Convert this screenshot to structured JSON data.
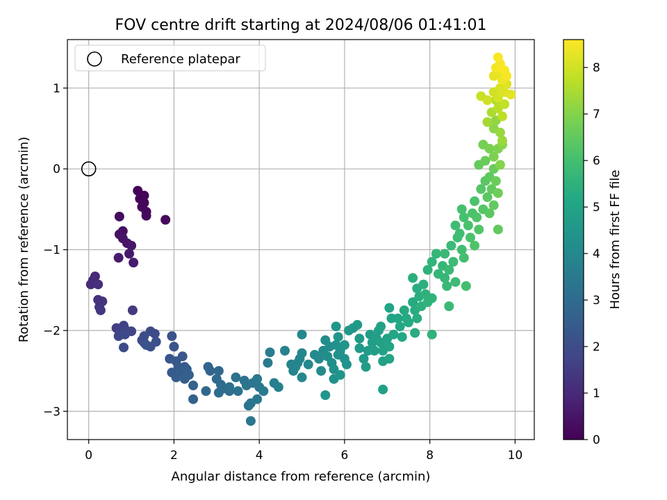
{
  "chart_data": {
    "type": "scatter",
    "title": "FOV centre drift starting at 2024/08/06 01:41:01",
    "xlabel": "Angular distance from reference (arcmin)",
    "ylabel": "Rotation from reference (arcmin)",
    "xlim": [
      -0.5,
      10.45
    ],
    "ylim": [
      -3.35,
      1.6
    ],
    "xticks": [
      0,
      2,
      4,
      6,
      8,
      10
    ],
    "yticks": [
      -3,
      -2,
      -1,
      0,
      1
    ],
    "grid": true,
    "legend": {
      "placement": "top-left",
      "entries": [
        "Reference platepar"
      ]
    },
    "reference_point": {
      "x": 0,
      "y": 0
    },
    "colorbar": {
      "label": "Hours from first FF file",
      "range": [
        0,
        8.6
      ],
      "ticks": [
        0,
        1,
        2,
        3,
        4,
        5,
        6,
        7,
        8
      ],
      "colormap": "viridis"
    },
    "points": [
      [
        1.15,
        -0.27,
        0.05
      ],
      [
        1.3,
        -0.33,
        0.07
      ],
      [
        1.2,
        -0.37,
        0.1
      ],
      [
        1.3,
        -0.42,
        0.12
      ],
      [
        1.25,
        -0.47,
        0.15
      ],
      [
        1.35,
        -0.53,
        0.18
      ],
      [
        1.35,
        -0.58,
        0.2
      ],
      [
        1.8,
        -0.63,
        0.22
      ],
      [
        0.72,
        -0.59,
        0.3
      ],
      [
        0.8,
        -0.77,
        0.35
      ],
      [
        0.72,
        -0.81,
        0.4
      ],
      [
        0.8,
        -0.86,
        0.45
      ],
      [
        0.9,
        -0.92,
        0.5
      ],
      [
        1.0,
        -0.95,
        0.55
      ],
      [
        0.95,
        -1.05,
        0.6
      ],
      [
        0.7,
        -1.1,
        0.63
      ],
      [
        1.05,
        -1.16,
        0.66
      ],
      [
        0.15,
        -1.33,
        1.0
      ],
      [
        0.1,
        -1.38,
        1.05
      ],
      [
        0.05,
        -1.43,
        1.1
      ],
      [
        0.22,
        -1.43,
        1.15
      ],
      [
        0.22,
        -1.62,
        1.2
      ],
      [
        0.32,
        -1.64,
        1.25
      ],
      [
        0.25,
        -1.71,
        1.3
      ],
      [
        0.28,
        -1.75,
        1.35
      ],
      [
        1.03,
        -1.75,
        1.45
      ],
      [
        0.65,
        -1.97,
        1.55
      ],
      [
        0.82,
        -1.94,
        1.6
      ],
      [
        0.73,
        -2.0,
        1.65
      ],
      [
        0.88,
        -2.0,
        1.7
      ],
      [
        1.0,
        -2.01,
        1.75
      ],
      [
        0.7,
        -2.07,
        1.8
      ],
      [
        0.85,
        -2.05,
        1.85
      ],
      [
        0.82,
        -2.21,
        1.9
      ],
      [
        1.45,
        -2.01,
        1.9
      ],
      [
        1.55,
        -2.04,
        1.95
      ],
      [
        1.3,
        -2.07,
        2.0
      ],
      [
        1.25,
        -2.12,
        2.0
      ],
      [
        1.3,
        -2.15,
        2.05
      ],
      [
        1.45,
        -2.2,
        2.1
      ],
      [
        1.58,
        -2.14,
        2.1
      ],
      [
        1.35,
        -2.18,
        2.15
      ],
      [
        1.95,
        -2.07,
        2.2
      ],
      [
        2.0,
        -2.2,
        2.25
      ],
      [
        1.9,
        -2.35,
        2.3
      ],
      [
        2.05,
        -2.38,
        2.35
      ],
      [
        2.2,
        -2.32,
        2.35
      ],
      [
        2.1,
        -2.45,
        2.4
      ],
      [
        2.25,
        -2.45,
        2.45
      ],
      [
        1.95,
        -2.52,
        2.45
      ],
      [
        2.05,
        -2.58,
        2.5
      ],
      [
        2.15,
        -2.55,
        2.55
      ],
      [
        2.25,
        -2.6,
        2.6
      ],
      [
        2.35,
        -2.55,
        2.6
      ],
      [
        2.2,
        -2.5,
        2.5
      ],
      [
        2.3,
        -2.48,
        2.55
      ],
      [
        2.45,
        -2.68,
        2.65
      ],
      [
        2.45,
        -2.85,
        2.7
      ],
      [
        2.8,
        -2.45,
        2.75
      ],
      [
        2.85,
        -2.5,
        2.8
      ],
      [
        2.75,
        -2.75,
        2.85
      ],
      [
        3.05,
        -2.5,
        2.9
      ],
      [
        3.0,
        -2.6,
        2.95
      ],
      [
        3.1,
        -2.67,
        3.0
      ],
      [
        3.15,
        -2.72,
        3.05
      ],
      [
        3.05,
        -2.77,
        3.05
      ],
      [
        3.3,
        -2.75,
        3.1
      ],
      [
        3.45,
        -2.58,
        3.15
      ],
      [
        3.3,
        -2.7,
        3.2
      ],
      [
        3.5,
        -2.75,
        3.25
      ],
      [
        3.65,
        -2.62,
        3.25
      ],
      [
        3.7,
        -2.68,
        3.3
      ],
      [
        3.75,
        -2.93,
        3.3
      ],
      [
        3.85,
        -2.65,
        3.35
      ],
      [
        3.8,
        -2.9,
        3.35
      ],
      [
        3.95,
        -2.6,
        3.4
      ],
      [
        4.0,
        -2.7,
        3.45
      ],
      [
        3.95,
        -2.85,
        3.45
      ],
      [
        4.1,
        -2.75,
        3.5
      ],
      [
        3.8,
        -3.12,
        3.4
      ],
      [
        4.2,
        -2.4,
        3.55
      ],
      [
        4.25,
        -2.27,
        3.6
      ],
      [
        4.35,
        -2.65,
        3.65
      ],
      [
        4.45,
        -2.7,
        3.7
      ],
      [
        4.6,
        -2.25,
        3.75
      ],
      [
        4.75,
        -2.42,
        3.8
      ],
      [
        4.8,
        -2.5,
        3.85
      ],
      [
        4.85,
        -2.45,
        3.85
      ],
      [
        4.9,
        -2.4,
        3.9
      ],
      [
        4.95,
        -2.35,
        3.9
      ],
      [
        5.0,
        -2.28,
        3.95
      ],
      [
        5.0,
        -2.58,
        3.95
      ],
      [
        5.0,
        -2.05,
        3.95
      ],
      [
        5.15,
        -2.42,
        4.0
      ],
      [
        5.3,
        -2.3,
        4.05
      ],
      [
        5.4,
        -2.35,
        4.05
      ],
      [
        5.45,
        -2.5,
        4.1
      ],
      [
        5.5,
        -2.25,
        4.1
      ],
      [
        5.55,
        -2.12,
        4.15
      ],
      [
        5.65,
        -2.2,
        4.15
      ],
      [
        5.6,
        -2.32,
        4.2
      ],
      [
        5.7,
        -2.4,
        4.2
      ],
      [
        5.75,
        -2.48,
        4.25
      ],
      [
        5.8,
        -2.18,
        4.25
      ],
      [
        5.75,
        -2.6,
        4.3
      ],
      [
        5.85,
        -2.3,
        4.3
      ],
      [
        5.9,
        -2.25,
        4.35
      ],
      [
        6.0,
        -2.35,
        4.35
      ],
      [
        6.0,
        -2.18,
        4.4
      ],
      [
        6.05,
        -2.42,
        4.4
      ],
      [
        5.9,
        -2.55,
        4.45
      ],
      [
        5.55,
        -2.8,
        4.45
      ],
      [
        5.85,
        -2.08,
        4.5
      ],
      [
        5.8,
        -1.95,
        4.5
      ],
      [
        6.1,
        -2.0,
        4.55
      ],
      [
        6.2,
        -1.97,
        4.55
      ],
      [
        6.3,
        -1.93,
        4.6
      ],
      [
        6.35,
        -2.1,
        4.6
      ],
      [
        6.35,
        -2.22,
        4.65
      ],
      [
        6.45,
        -2.35,
        4.65
      ],
      [
        6.5,
        -2.45,
        4.7
      ],
      [
        6.55,
        -2.25,
        4.7
      ],
      [
        6.6,
        -2.05,
        4.75
      ],
      [
        6.65,
        -2.15,
        4.75
      ],
      [
        6.7,
        -2.25,
        4.8
      ],
      [
        6.75,
        -2.1,
        4.8
      ],
      [
        6.8,
        -2.0,
        4.85
      ],
      [
        6.85,
        -2.15,
        4.85
      ],
      [
        6.9,
        -2.25,
        4.9
      ],
      [
        6.9,
        -2.38,
        4.9
      ],
      [
        6.85,
        -1.95,
        4.95
      ],
      [
        7.0,
        -2.1,
        4.95
      ],
      [
        7.05,
        -2.2,
        5.0
      ],
      [
        7.05,
        -2.35,
        5.0
      ],
      [
        6.9,
        -2.73,
        4.85
      ],
      [
        7.05,
        -1.72,
        5.05
      ],
      [
        7.1,
        -1.85,
        5.05
      ],
      [
        7.15,
        -2.05,
        5.1
      ],
      [
        7.25,
        -1.85,
        5.1
      ],
      [
        7.3,
        -1.95,
        5.15
      ],
      [
        7.35,
        -2.08,
        5.15
      ],
      [
        7.4,
        -1.75,
        5.2
      ],
      [
        7.45,
        -1.85,
        5.2
      ],
      [
        7.5,
        -1.9,
        5.25
      ],
      [
        7.6,
        -1.65,
        5.25
      ],
      [
        7.65,
        -1.75,
        5.3
      ],
      [
        7.65,
        -2.03,
        5.3
      ],
      [
        7.7,
        -1.85,
        5.35
      ],
      [
        7.7,
        -1.48,
        5.35
      ],
      [
        7.6,
        -1.35,
        5.4
      ],
      [
        7.75,
        -1.58,
        5.4
      ],
      [
        7.8,
        -1.7,
        5.45
      ],
      [
        7.85,
        -1.43,
        5.45
      ],
      [
        7.9,
        -1.55,
        5.5
      ],
      [
        7.95,
        -1.25,
        5.5
      ],
      [
        7.95,
        -1.65,
        5.55
      ],
      [
        8.05,
        -1.6,
        5.55
      ],
      [
        8.05,
        -1.15,
        5.6
      ],
      [
        8.05,
        -2.05,
        5.55
      ],
      [
        8.15,
        -1.05,
        5.65
      ],
      [
        8.2,
        -1.3,
        5.65
      ],
      [
        8.3,
        -1.2,
        5.7
      ],
      [
        8.35,
        -1.35,
        5.7
      ],
      [
        8.35,
        -1.05,
        5.75
      ],
      [
        8.4,
        -1.45,
        5.75
      ],
      [
        8.45,
        -1.25,
        5.8
      ],
      [
        8.5,
        -0.95,
        5.8
      ],
      [
        8.55,
        -1.15,
        5.85
      ],
      [
        8.6,
        -1.4,
        5.85
      ],
      [
        8.45,
        -1.7,
        5.8
      ],
      [
        8.65,
        -0.85,
        5.9
      ],
      [
        8.6,
        -0.7,
        5.9
      ],
      [
        8.7,
        -0.8,
        5.95
      ],
      [
        8.75,
        -1.0,
        5.95
      ],
      [
        8.8,
        -1.1,
        6.0
      ],
      [
        8.85,
        -1.45,
        6.0
      ],
      [
        8.75,
        -0.5,
        6.05
      ],
      [
        8.8,
        -0.6,
        6.05
      ],
      [
        8.9,
        -0.7,
        6.1
      ],
      [
        8.95,
        -0.85,
        6.1
      ],
      [
        9.0,
        -0.55,
        6.15
      ],
      [
        9.05,
        -0.4,
        6.15
      ],
      [
        9.1,
        -0.6,
        6.2
      ],
      [
        9.05,
        -0.95,
        6.2
      ],
      [
        9.15,
        -0.75,
        6.25
      ],
      [
        9.2,
        -0.25,
        6.3
      ],
      [
        9.25,
        -0.5,
        6.3
      ],
      [
        9.3,
        -0.15,
        6.35
      ],
      [
        9.35,
        -0.35,
        6.4
      ],
      [
        9.4,
        -0.55,
        6.4
      ],
      [
        9.4,
        -0.1,
        6.45
      ],
      [
        9.45,
        -0.25,
        6.5
      ],
      [
        9.5,
        -0.45,
        6.5
      ],
      [
        9.15,
        0.05,
        6.55
      ],
      [
        9.3,
        0.1,
        6.6
      ],
      [
        9.5,
        0.0,
        6.6
      ],
      [
        9.55,
        -0.15,
        6.65
      ],
      [
        9.6,
        -0.3,
        6.7
      ],
      [
        9.6,
        -0.75,
        6.5
      ],
      [
        9.25,
        0.3,
        6.8
      ],
      [
        9.4,
        0.25,
        6.85
      ],
      [
        9.5,
        0.15,
        6.9
      ],
      [
        9.6,
        0.25,
        6.95
      ],
      [
        9.65,
        0.05,
        7.0
      ],
      [
        9.7,
        0.3,
        7.05
      ],
      [
        9.5,
        0.5,
        7.1
      ],
      [
        9.55,
        0.6,
        7.2
      ],
      [
        9.65,
        0.45,
        7.25
      ],
      [
        9.7,
        0.35,
        7.3
      ],
      [
        9.35,
        0.58,
        7.4
      ],
      [
        9.45,
        0.7,
        7.5
      ],
      [
        9.55,
        0.85,
        7.6
      ],
      [
        9.6,
        0.75,
        7.7
      ],
      [
        9.7,
        0.65,
        7.75
      ],
      [
        9.75,
        0.8,
        7.8
      ],
      [
        9.2,
        0.9,
        7.9
      ],
      [
        9.35,
        0.85,
        7.95
      ],
      [
        9.5,
        0.95,
        8.0
      ],
      [
        9.6,
        0.88,
        8.05
      ],
      [
        9.65,
        1.0,
        8.1
      ],
      [
        9.75,
        0.95,
        8.15
      ],
      [
        9.8,
        1.05,
        8.2
      ],
      [
        9.9,
        0.92,
        8.25
      ],
      [
        9.5,
        1.15,
        8.3
      ],
      [
        9.6,
        1.2,
        8.35
      ],
      [
        9.7,
        1.1,
        8.4
      ],
      [
        9.55,
        1.25,
        8.45
      ],
      [
        9.65,
        1.3,
        8.5
      ],
      [
        9.6,
        1.38,
        8.55
      ],
      [
        9.75,
        1.22,
        8.55
      ],
      [
        9.8,
        1.15,
        8.5
      ]
    ]
  }
}
